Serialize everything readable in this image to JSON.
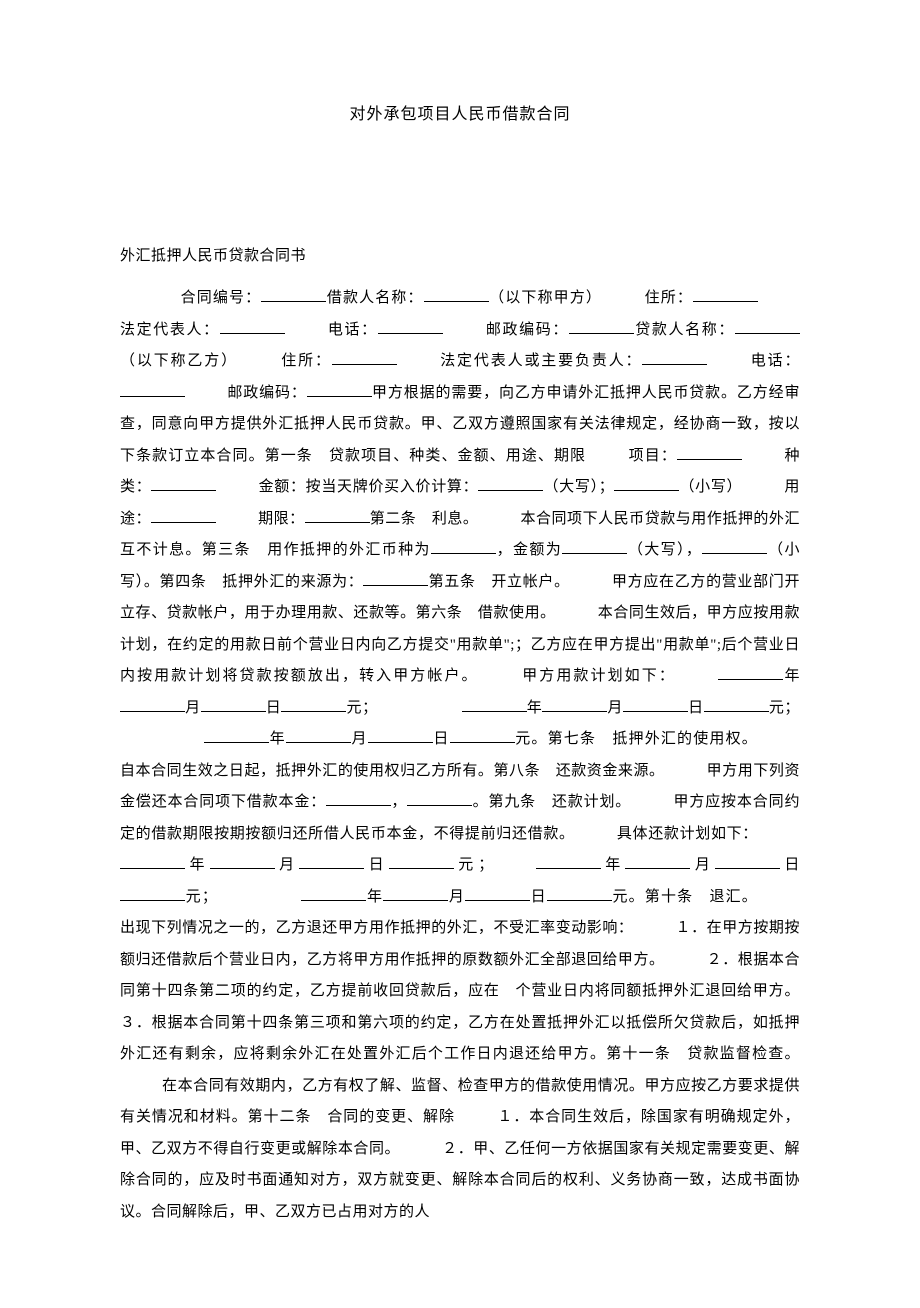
{
  "document": {
    "title": "对外承包项目人民币借款合同",
    "section_heading": "外汇抵押人民币贷款合同书",
    "body_parts": {
      "p1": "合同编号：",
      "p2": "借款人名称：",
      "p3": "（以下称甲方）",
      "p4": "住所：",
      "p5": "法定代表人：",
      "p6": "电话：",
      "p7": "邮政编码：",
      "p8": "贷款人名称：",
      "p9": "（以下称乙方）",
      "p10": "住所：",
      "p11": "法定代表人或主要负责人：",
      "p12": "电话：",
      "p13": "邮政编码：",
      "p14": "甲方根据的需要，向乙方申请外汇抵押人民币贷款。乙方经审查，同意向甲方提供外汇抵押人民币贷款。甲、乙双方遵照国家有关法律规定，经协商一致，按以下条款订立本合同。第一条　贷款项目、种类、金额、用途、期限",
      "p15": "项目：",
      "p16": "种类：",
      "p17": "金额：按当天牌价买入价计算：",
      "p18": "（大写）；",
      "p19": "（小写）",
      "p20": "用途：",
      "p21": "期限：",
      "p22": "第二条　利息。",
      "p23": "本合同项下人民币贷款与用作抵押的外汇互不计息。第三条　用作抵押的外汇币种为",
      "p24": "，金额为",
      "p25": "（大写），",
      "p26": "（小写）。第四条　抵押外汇的来源为：",
      "p27": "第五条　开立帐户。",
      "p28": "甲方应在乙方的营业部门开立存、贷款帐户，用于办理用款、还款等。第六条　借款使用。",
      "p29": "本合同生效后，甲方应按用款计划，在约定的用款日前个营业日内向乙方提交\"用款单\";；乙方应在甲方提出\"用款单\";后个营业日内按用款计划将贷款按额放出，转入甲方帐户。",
      "p30": "甲方用款计划如下：",
      "p31": "年",
      "p32": "月",
      "p33": "日",
      "p34": "元；",
      "p35": "年",
      "p36": "月",
      "p37": "日",
      "p38": "元；",
      "p39": "年",
      "p40": "月",
      "p41": "日",
      "p42": "元。第七条　抵押外汇的使用权。",
      "p43": "自本合同生效之日起，抵押外汇的使用权归乙方所有。第八条　还款资金来源。",
      "p44": "甲方用下列资金偿还本合同项下借款本金：",
      "p45": "，",
      "p46": "。第九条　还款计划。",
      "p47": "甲方应按本合同约定的借款期限按期按额归还所借人民币本金，不得提前归还借款。",
      "p48": "具体还款计划如下：",
      "p49": "年",
      "p50": "月",
      "p51": "日",
      "p52": "元；",
      "p53": "年",
      "p54": "月",
      "p55": "日",
      "p56": "元；",
      "p57": "年",
      "p58": "月",
      "p59": "日",
      "p60": "元。第十条　退汇。",
      "p61": "出现下列情况之一的，乙方退还甲方用作抵押的外汇，不受汇率变动影响：",
      "p62": "１．在甲方按期按额归还借款后个营业日内，乙方将甲方用作抵押的原数额外汇全部退回给甲方。",
      "p63": "２．根据本合同第十四条第二项的约定，乙方提前收回贷款后，应在　个营业日内将同额抵押外汇退回给甲方。３．根据本合同第十四条第三项和第六项的约定，乙方在处置抵押外汇以抵偿所欠贷款后，如抵押外汇还有剩余，应将剩余外汇在处置外汇后个工作日内退还给甲方。第十一条　贷款监督检查。",
      "p64": "在本合同有效期内，乙方有权了解、监督、检查甲方的借款使用情况。甲方应按乙方要求提供有关情况和材料。第十二条　合同的变更、解除",
      "p65": "１．本合同生效后，除国家有明确规定外，甲、乙双方不得自行变更或解除本合同。",
      "p66": "２．甲、乙任何一方依据国家有关规定需要变更、解除合同的，应及时书面通知对方，双方就变更、解除本合同后的权利、义务协商一致，达成书面协议。合同解除后，甲、乙双方已占用对方的人"
    }
  },
  "style": {
    "background_color": "#ffffff",
    "text_color": "#000000",
    "font_family": "SimSun",
    "title_fontsize": 16,
    "body_fontsize": 15,
    "line_height": 2.1
  }
}
